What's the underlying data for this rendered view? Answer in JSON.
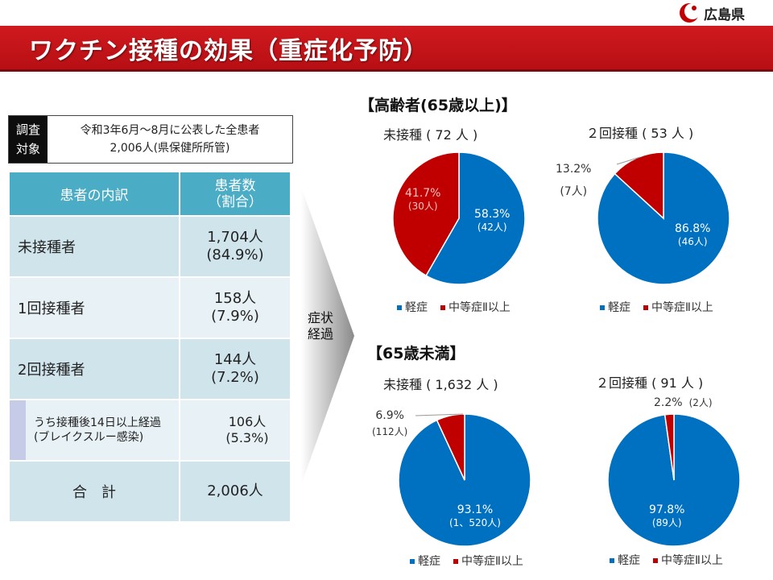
{
  "header": {
    "title": "ワクチン接種の効果（重症化予防）",
    "logo_text": "広島県"
  },
  "survey": {
    "label_line1": "調査",
    "label_line2": "対象",
    "value_line1": "令和3年6月～8月に公表した全患者",
    "value_line2": "2,006人(県保健所所管)"
  },
  "table": {
    "headers": [
      "患者の内訳",
      "患者数",
      "（割合）"
    ],
    "rows": [
      {
        "name": "未接種者",
        "count": "1,704人",
        "pct": "(84.9%)"
      },
      {
        "name": "1回接種者",
        "count": "158人",
        "pct": "(7.9%)"
      },
      {
        "name": "2回接種者",
        "count": "144人",
        "pct": "(7.2%)"
      },
      {
        "name1": "うち接種後14日以上経過",
        "name2": "(ブレイクスルー感染)",
        "count": "106人",
        "pct": "(5.3%)"
      },
      {
        "name": "合　計",
        "count": "2,006人"
      }
    ]
  },
  "arrow_label": [
    "症状",
    "経過"
  ],
  "sections": {
    "elderly": "【高齢者(65歳以上)】",
    "young": "【65歳未満】"
  },
  "legend": {
    "mild": "軽症",
    "moderate": "中等症Ⅱ以上",
    "mild_color": "#0070c0",
    "moderate_color": "#c00000"
  },
  "chart_data": [
    {
      "type": "pie",
      "title": "未接種 ( 72 人 )",
      "categories": [
        "軽症",
        "中等症Ⅱ以上"
      ],
      "values": [
        58.3,
        41.7
      ],
      "counts": [
        "(42人)",
        "(30人)"
      ],
      "labels": [
        "58.3%",
        "41.7%"
      ]
    },
    {
      "type": "pie",
      "title": "２回接種 ( 53 人 )",
      "categories": [
        "軽症",
        "中等症Ⅱ以上"
      ],
      "values": [
        86.8,
        13.2
      ],
      "counts": [
        "(46人)",
        "(7人)"
      ],
      "labels": [
        "86.8%",
        "13.2%"
      ]
    },
    {
      "type": "pie",
      "title": "未接種 ( 1,632 人 )",
      "categories": [
        "軽症",
        "中等症Ⅱ以上"
      ],
      "values": [
        93.1,
        6.9
      ],
      "counts": [
        "(1、520人)",
        "(112人)"
      ],
      "labels": [
        "93.1%",
        "6.9%"
      ]
    },
    {
      "type": "pie",
      "title": "２回接種 ( 91 人 )",
      "categories": [
        "軽症",
        "中等症Ⅱ以上"
      ],
      "values": [
        97.8,
        2.2
      ],
      "counts": [
        "(89人)",
        "(2人)"
      ],
      "labels": [
        "97.8%",
        "2.2%"
      ]
    }
  ]
}
